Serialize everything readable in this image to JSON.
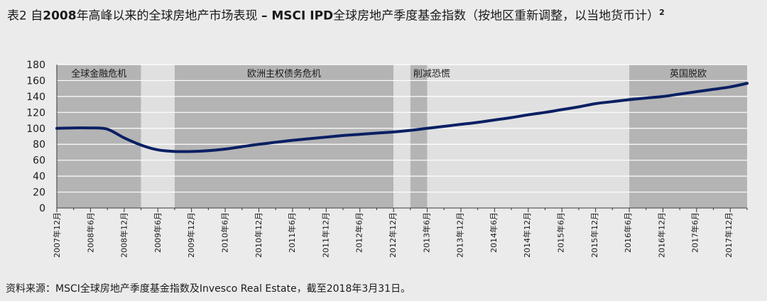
{
  "title": {
    "lead": "表2 自",
    "year": "2008",
    "mid": "年高峰以来的全球房地产市场表现 ",
    "dash": "–",
    "brand": " MSCI IPD",
    "rest": "全球房地产季度基金指数（按地区重新调整，以当地货币计）",
    "footnote": "2"
  },
  "source": "资料来源：MSCI全球房地产季度基金指数及Invesco Real Estate，截至2018年3月31日。",
  "colors": {
    "band": "#b4b4b4",
    "band_light": "#e0e0e0",
    "plot_bg": "#f2f2f2",
    "line": "#0a1f63",
    "grid": "#ffffff",
    "axis": "#333333"
  },
  "chart_data": {
    "type": "line",
    "title": "",
    "xlabel": "",
    "ylabel": "",
    "ylim": [
      0,
      180
    ],
    "yticks": [
      0,
      20,
      40,
      60,
      80,
      100,
      120,
      140,
      160,
      180
    ],
    "xticks": [
      "2007年12月",
      "2008年6月",
      "2008年12月",
      "2009年6月",
      "2009年12月",
      "2010年6月",
      "2010年12月",
      "2011年6月",
      "2011年12月",
      "2012年6月",
      "2012年12月",
      "2013年6月",
      "2013年12月",
      "2014年6月",
      "2014年12月",
      "2015年6月",
      "2015年12月",
      "2016年6月",
      "2016年12月",
      "2017年6月",
      "2017年12月"
    ],
    "grid": true,
    "legend": "none",
    "series": [
      {
        "x": [
          "2007-12",
          "2008-03",
          "2008-06",
          "2008-09",
          "2008-12",
          "2009-03",
          "2009-06",
          "2009-09",
          "2009-12",
          "2010-03",
          "2010-06",
          "2010-09",
          "2010-12",
          "2011-03",
          "2011-06",
          "2011-09",
          "2011-12",
          "2012-03",
          "2012-06",
          "2012-09",
          "2012-12",
          "2013-03",
          "2013-06",
          "2013-09",
          "2013-12",
          "2014-03",
          "2014-06",
          "2014-09",
          "2014-12",
          "2015-03",
          "2015-06",
          "2015-09",
          "2015-12",
          "2016-03",
          "2016-06",
          "2016-09",
          "2016-12",
          "2017-03",
          "2017-06",
          "2017-09",
          "2017-12",
          "2018-03"
        ],
        "values": [
          100,
          100.5,
          100.5,
          99,
          88,
          79,
          73,
          71,
          71,
          72,
          74,
          77,
          80,
          82.5,
          85,
          87,
          89,
          91,
          92.5,
          94,
          95.5,
          97.5,
          100,
          102.5,
          105,
          107.5,
          110.5,
          113.5,
          117,
          120,
          123.5,
          127,
          131,
          133.5,
          136,
          138,
          140,
          143,
          146,
          149,
          152,
          156.5
        ]
      }
    ],
    "annotations": [
      {
        "label": "全球金融危机",
        "start": "2007-12",
        "end": "2009-03",
        "tone": "dark"
      },
      {
        "label": "",
        "start": "2009-03",
        "end": "2009-09",
        "tone": "light"
      },
      {
        "label": "欧洲主权债务危机",
        "start": "2009-09",
        "end": "2012-12",
        "tone": "dark"
      },
      {
        "label": "",
        "start": "2012-12",
        "end": "2013-03",
        "tone": "light"
      },
      {
        "label": "削减恐慌",
        "start": "2013-03",
        "end": "2013-06",
        "tone": "dark"
      },
      {
        "label": "",
        "start": "2013-06",
        "end": "2016-06",
        "tone": "light"
      },
      {
        "label": "英国脱欧",
        "start": "2016-06",
        "end": "2018-03",
        "tone": "dark"
      }
    ]
  }
}
